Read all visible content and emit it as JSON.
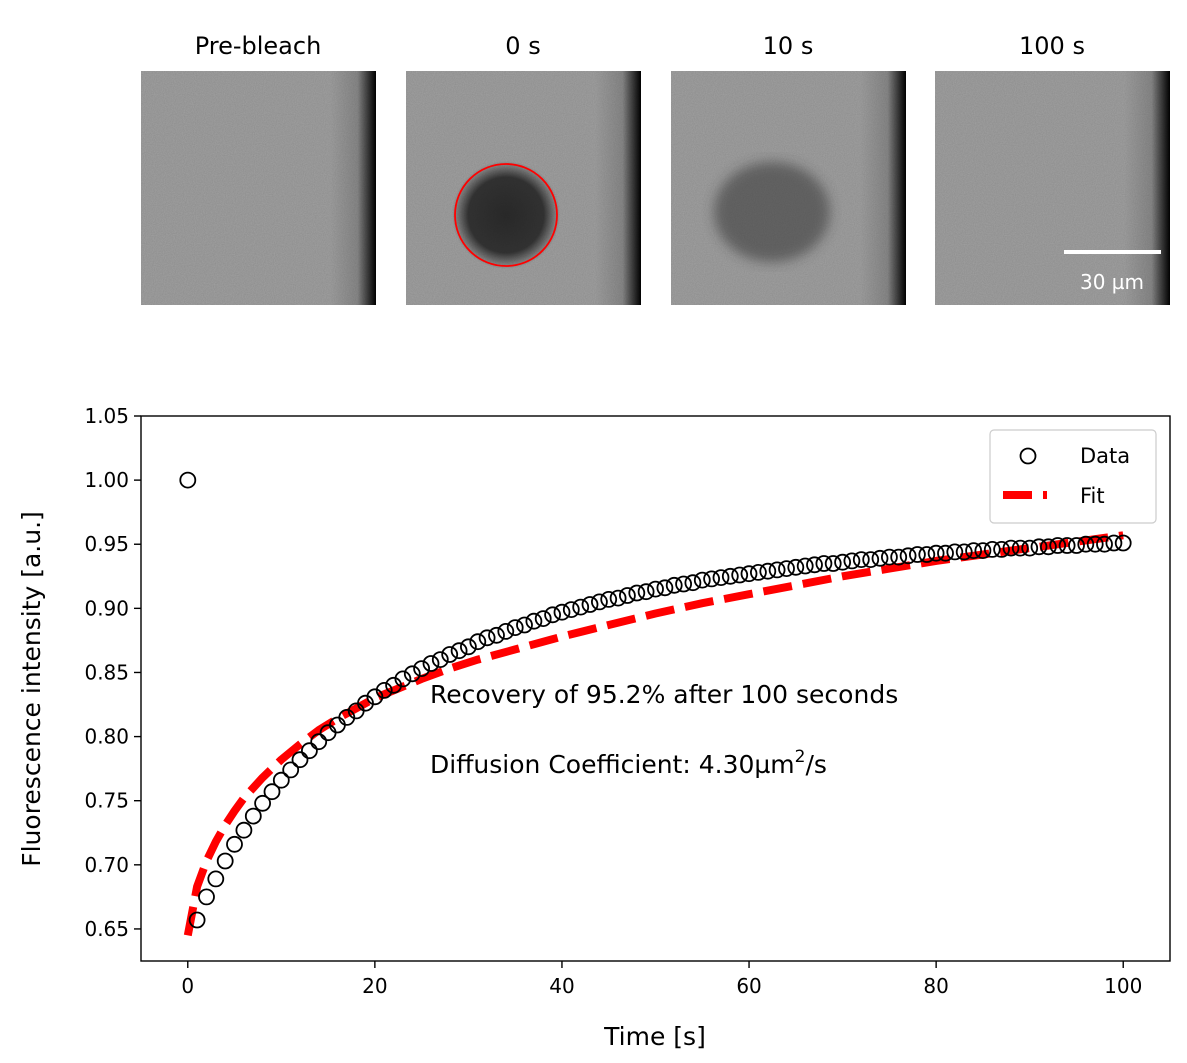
{
  "panels": [
    {
      "title": "Pre-bleach",
      "bleach_depth": 0.0
    },
    {
      "title": "0 s",
      "bleach_depth": 0.72
    },
    {
      "title": "10 s",
      "bleach_depth": 0.4
    },
    {
      "title": "100 s",
      "bleach_depth": 0.05
    }
  ],
  "scalebar": {
    "label": "30 µm"
  },
  "colors": {
    "data_marker": "#000000",
    "fit_line": "#ff0000",
    "bleach_roi": "#ff0000",
    "scalebar": "#ffffff"
  },
  "chart_data": {
    "type": "scatter",
    "xlabel": "Time [s]",
    "ylabel": "Fluorescence intensity [a.u.]",
    "xlim": [
      -5,
      105
    ],
    "ylim": [
      0.625,
      1.05
    ],
    "xticks": [
      0,
      20,
      40,
      60,
      80,
      100
    ],
    "yticks": [
      0.65,
      0.7,
      0.75,
      0.8,
      0.85,
      0.9,
      0.95,
      1.0,
      1.05
    ],
    "grid": false,
    "legend_position": "top-right",
    "legend": {
      "data_label": "Data",
      "fit_label": "Fit"
    },
    "annotations": {
      "recovery": "Recovery of 95.2% after 100 seconds",
      "diffusion_prefix": "Diffusion Coefficient: 4.30µm",
      "diffusion_sup": "2",
      "diffusion_suffix": "/s"
    },
    "series": [
      {
        "name": "Data",
        "style": "open-circle",
        "x": [
          0,
          1,
          2,
          3,
          4,
          5,
          6,
          7,
          8,
          9,
          10,
          11,
          12,
          13,
          14,
          15,
          16,
          17,
          18,
          19,
          20,
          21,
          22,
          23,
          24,
          25,
          26,
          27,
          28,
          29,
          30,
          31,
          32,
          33,
          34,
          35,
          36,
          37,
          38,
          39,
          40,
          41,
          42,
          43,
          44,
          45,
          46,
          47,
          48,
          49,
          50,
          51,
          52,
          53,
          54,
          55,
          56,
          57,
          58,
          59,
          60,
          61,
          62,
          63,
          64,
          65,
          66,
          67,
          68,
          69,
          70,
          71,
          72,
          73,
          74,
          75,
          76,
          77,
          78,
          79,
          80,
          81,
          82,
          83,
          84,
          85,
          86,
          87,
          88,
          89,
          90,
          91,
          92,
          93,
          94,
          95,
          96,
          97,
          98,
          99,
          100
        ],
        "y": [
          1.0,
          0.657,
          0.675,
          0.689,
          0.703,
          0.716,
          0.727,
          0.738,
          0.748,
          0.757,
          0.766,
          0.774,
          0.782,
          0.789,
          0.796,
          0.803,
          0.809,
          0.815,
          0.82,
          0.826,
          0.831,
          0.836,
          0.84,
          0.845,
          0.849,
          0.853,
          0.857,
          0.86,
          0.864,
          0.867,
          0.87,
          0.874,
          0.877,
          0.879,
          0.882,
          0.885,
          0.887,
          0.89,
          0.892,
          0.895,
          0.897,
          0.899,
          0.901,
          0.903,
          0.905,
          0.907,
          0.908,
          0.91,
          0.912,
          0.913,
          0.915,
          0.916,
          0.918,
          0.919,
          0.92,
          0.922,
          0.923,
          0.924,
          0.925,
          0.926,
          0.927,
          0.928,
          0.929,
          0.93,
          0.931,
          0.932,
          0.933,
          0.934,
          0.935,
          0.935,
          0.936,
          0.937,
          0.938,
          0.938,
          0.939,
          0.94,
          0.94,
          0.941,
          0.942,
          0.942,
          0.943,
          0.943,
          0.944,
          0.944,
          0.945,
          0.945,
          0.946,
          0.946,
          0.947,
          0.947,
          0.947,
          0.948,
          0.948,
          0.949,
          0.949,
          0.949,
          0.95,
          0.95,
          0.95,
          0.951,
          0.951
        ]
      },
      {
        "name": "Fit",
        "style": "dashed-line",
        "x": [
          0,
          1,
          2,
          3,
          4,
          5,
          6,
          8,
          10,
          12,
          14,
          16,
          18,
          20,
          22,
          25,
          28,
          31,
          35,
          40,
          45,
          50,
          55,
          60,
          65,
          70,
          75,
          80,
          85,
          90,
          95,
          100
        ],
        "y": [
          0.645,
          0.683,
          0.703,
          0.718,
          0.731,
          0.742,
          0.752,
          0.768,
          0.782,
          0.794,
          0.805,
          0.814,
          0.822,
          0.83,
          0.836,
          0.845,
          0.853,
          0.86,
          0.868,
          0.878,
          0.887,
          0.896,
          0.904,
          0.911,
          0.918,
          0.925,
          0.931,
          0.937,
          0.942,
          0.947,
          0.952,
          0.957
        ]
      }
    ]
  }
}
